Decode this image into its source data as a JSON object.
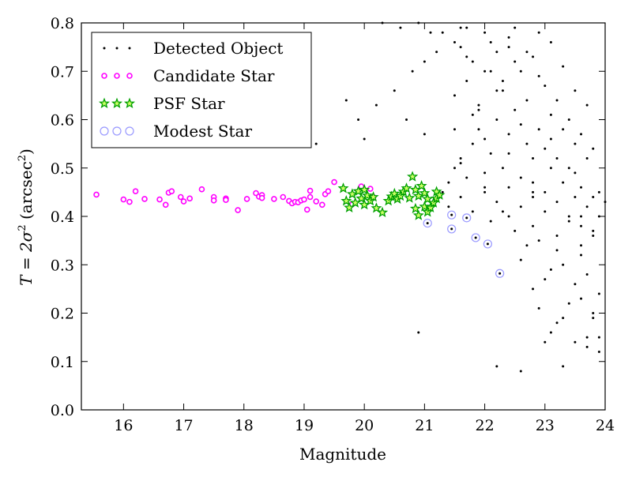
{
  "chart_data": {
    "type": "scatter",
    "title": "",
    "xlabel": "Magnitude",
    "ylabel_prefix": "T = 2σ",
    "ylabel_exp": "2",
    "ylabel_mid": " (arcsec",
    "ylabel_end": ")",
    "xlim": [
      15.3,
      24.0
    ],
    "ylim": [
      0.0,
      0.8
    ],
    "xticks": [
      16,
      17,
      18,
      19,
      20,
      21,
      22,
      23,
      24
    ],
    "yticks": [
      0.0,
      0.1,
      0.2,
      0.3,
      0.4,
      0.5,
      0.6,
      0.7,
      0.8
    ],
    "xtick_labels": [
      "16",
      "17",
      "18",
      "19",
      "20",
      "21",
      "22",
      "23",
      "24"
    ],
    "ytick_labels": [
      "0.0",
      "0.1",
      "0.2",
      "0.3",
      "0.4",
      "0.5",
      "0.6",
      "0.7",
      "0.8"
    ],
    "grid": false,
    "legend_position": "top-left",
    "series": [
      {
        "name": "Detected Object",
        "marker": "dot",
        "color": "#000000",
        "x": [
          21.3,
          21.4,
          21.5,
          21.6,
          21.7,
          21.8,
          21.9,
          22.0,
          22.1,
          22.2,
          22.3,
          22.4,
          22.5,
          22.6,
          22.7,
          22.8,
          22.9,
          23.0,
          23.1,
          23.2,
          23.3,
          23.4,
          23.5,
          23.6,
          23.7,
          23.8,
          23.9,
          21.5,
          21.7,
          21.9,
          22.1,
          22.3,
          22.5,
          22.7,
          22.9,
          23.1,
          23.3,
          23.5,
          23.7,
          21.6,
          21.8,
          22.0,
          22.2,
          22.4,
          22.6,
          22.8,
          23.0,
          23.2,
          23.4,
          23.6,
          23.8,
          21.4,
          21.6,
          21.8,
          22.0,
          22.2,
          22.4,
          22.6,
          22.8,
          23.0,
          23.2,
          23.4,
          23.6,
          23.8,
          21.5,
          21.9,
          22.3,
          22.7,
          23.1,
          23.5,
          23.9,
          21.7,
          22.1,
          22.5,
          22.9,
          23.3,
          23.7,
          21.6,
          22.0,
          22.4,
          22.8,
          23.2,
          23.6,
          21.8,
          22.2,
          22.6,
          23.0,
          23.4,
          23.8,
          22.0,
          22.4,
          22.8,
          23.2,
          23.6,
          22.1,
          22.5,
          22.9,
          23.3,
          23.7,
          22.3,
          22.7,
          23.1,
          23.5,
          23.9,
          22.6,
          23.0,
          23.4,
          23.8,
          22.8,
          23.2,
          23.6,
          22.9,
          23.3,
          23.7,
          23.1,
          23.5,
          23.9,
          20.3,
          20.6,
          20.9,
          21.1,
          21.2,
          21.0,
          20.8,
          20.5,
          20.2,
          19.9,
          19.7,
          19.2,
          20.0,
          20.7,
          21.0,
          20.9,
          21.3,
          21.6,
          22.2,
          22.6,
          23.0,
          23.3,
          23.7,
          23.9,
          21.5,
          21.7,
          22.0,
          22.4,
          23.1,
          23.5,
          22.8,
          23.6,
          23.8,
          24.0
        ],
        "y": [
          0.45,
          0.47,
          0.5,
          0.52,
          0.48,
          0.55,
          0.58,
          0.46,
          0.53,
          0.6,
          0.5,
          0.57,
          0.62,
          0.48,
          0.55,
          0.52,
          0.58,
          0.45,
          0.5,
          0.43,
          0.47,
          0.4,
          0.44,
          0.38,
          0.42,
          0.36,
          0.4,
          0.65,
          0.68,
          0.62,
          0.7,
          0.66,
          0.72,
          0.64,
          0.69,
          0.61,
          0.58,
          0.55,
          0.52,
          0.75,
          0.72,
          0.78,
          0.74,
          0.77,
          0.7,
          0.73,
          0.67,
          0.64,
          0.6,
          0.57,
          0.54,
          0.42,
          0.44,
          0.41,
          0.45,
          0.43,
          0.4,
          0.42,
          0.38,
          0.41,
          0.36,
          0.39,
          0.34,
          0.37,
          0.58,
          0.63,
          0.68,
          0.74,
          0.56,
          0.49,
          0.45,
          0.79,
          0.76,
          0.79,
          0.78,
          0.71,
          0.63,
          0.51,
          0.56,
          0.53,
          0.47,
          0.52,
          0.46,
          0.61,
          0.66,
          0.59,
          0.54,
          0.5,
          0.44,
          0.49,
          0.46,
          0.44,
          0.33,
          0.32,
          0.39,
          0.37,
          0.35,
          0.3,
          0.28,
          0.41,
          0.34,
          0.29,
          0.26,
          0.24,
          0.31,
          0.27,
          0.22,
          0.2,
          0.25,
          0.18,
          0.23,
          0.21,
          0.19,
          0.15,
          0.16,
          0.14,
          0.12,
          0.8,
          0.79,
          0.8,
          0.78,
          0.74,
          0.72,
          0.7,
          0.66,
          0.63,
          0.6,
          0.64,
          0.55,
          0.56,
          0.6,
          0.57,
          0.16,
          0.78,
          0.79,
          0.09,
          0.08,
          0.14,
          0.09,
          0.13,
          0.15,
          0.76,
          0.73,
          0.7,
          0.75,
          0.76,
          0.66,
          0.45,
          0.4,
          0.19,
          0.43
        ]
      },
      {
        "name": "Candidate Star",
        "marker": "circle-small",
        "color": "#ff00ff",
        "x": [
          15.55,
          16.0,
          16.1,
          16.2,
          16.35,
          16.6,
          16.7,
          16.75,
          16.8,
          16.95,
          17.0,
          17.1,
          17.3,
          17.5,
          17.5,
          17.7,
          17.7,
          17.9,
          18.05,
          18.2,
          18.25,
          18.3,
          18.3,
          18.5,
          18.65,
          18.75,
          18.8,
          18.85,
          18.9,
          18.95,
          19.0,
          19.05,
          19.1,
          19.1,
          19.2,
          19.3,
          19.35,
          19.4,
          19.5,
          19.8,
          19.95,
          20.1,
          20.15
        ],
        "y": [
          0.445,
          0.435,
          0.43,
          0.452,
          0.436,
          0.435,
          0.424,
          0.449,
          0.452,
          0.44,
          0.431,
          0.437,
          0.456,
          0.44,
          0.433,
          0.437,
          0.434,
          0.413,
          0.436,
          0.448,
          0.441,
          0.444,
          0.438,
          0.436,
          0.44,
          0.432,
          0.427,
          0.43,
          0.429,
          0.433,
          0.435,
          0.414,
          0.453,
          0.44,
          0.431,
          0.424,
          0.446,
          0.452,
          0.471,
          0.425,
          0.462,
          0.457,
          0.44
        ]
      },
      {
        "name": "PSF Star",
        "marker": "star",
        "color": "#00a000",
        "x": [
          19.65,
          19.7,
          19.75,
          19.8,
          19.85,
          19.9,
          19.95,
          20.0,
          20.0,
          20.05,
          20.1,
          20.15,
          20.2,
          20.3,
          20.4,
          20.45,
          20.5,
          20.55,
          20.6,
          20.65,
          20.7,
          20.75,
          20.8,
          20.85,
          20.85,
          20.9,
          20.9,
          20.95,
          21.0,
          21.0,
          21.05,
          21.05,
          21.1,
          21.15,
          21.2,
          21.2,
          21.25
        ],
        "y": [
          0.458,
          0.432,
          0.418,
          0.446,
          0.428,
          0.452,
          0.437,
          0.455,
          0.424,
          0.443,
          0.432,
          0.44,
          0.417,
          0.408,
          0.432,
          0.441,
          0.447,
          0.436,
          0.442,
          0.451,
          0.458,
          0.438,
          0.482,
          0.416,
          0.455,
          0.442,
          0.402,
          0.463,
          0.42,
          0.448,
          0.436,
          0.409,
          0.418,
          0.428,
          0.451,
          0.437,
          0.444
        ]
      },
      {
        "name": "Modest Star",
        "marker": "ring",
        "color": "#9999ff",
        "x": [
          21.05,
          21.45,
          21.45,
          21.7,
          21.85,
          22.05,
          22.25
        ],
        "y": [
          0.386,
          0.403,
          0.374,
          0.397,
          0.356,
          0.343,
          0.282
        ]
      }
    ]
  }
}
